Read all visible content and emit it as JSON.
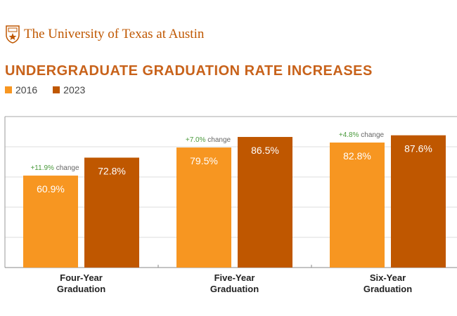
{
  "header": {
    "logo_text": "The University of Texas at Austin"
  },
  "colors": {
    "brand": "#bf5700",
    "series_2016": "#f79621",
    "series_2023": "#bf5700",
    "change_positive": "#4a9a3c"
  },
  "chart_data": {
    "type": "bar",
    "title": "UNDERGRADUATE GRADUATION RATE INCREASES",
    "categories": [
      "Four-Year\nGraduation",
      "Five-Year\nGraduation",
      "Six-Year\nGraduation"
    ],
    "category_lines": [
      [
        "Four-Year",
        "Graduation"
      ],
      [
        "Five-Year",
        "Graduation"
      ],
      [
        "Six-Year",
        "Graduation"
      ]
    ],
    "series": [
      {
        "name": "2016",
        "values": [
          60.9,
          79.5,
          82.8
        ],
        "labels": [
          "60.9%",
          "79.5%",
          "82.8%"
        ]
      },
      {
        "name": "2023",
        "values": [
          72.8,
          86.5,
          87.6
        ],
        "labels": [
          "72.8%",
          "86.5%",
          "87.6%"
        ]
      }
    ],
    "annotations": [
      {
        "value": "+11.9%",
        "suffix": "change"
      },
      {
        "value": "+7.0%",
        "suffix": "change"
      },
      {
        "value": "+4.8%",
        "suffix": "change"
      }
    ],
    "ylim": [
      0,
      100
    ],
    "grid": true,
    "legend_position": "top-left"
  }
}
